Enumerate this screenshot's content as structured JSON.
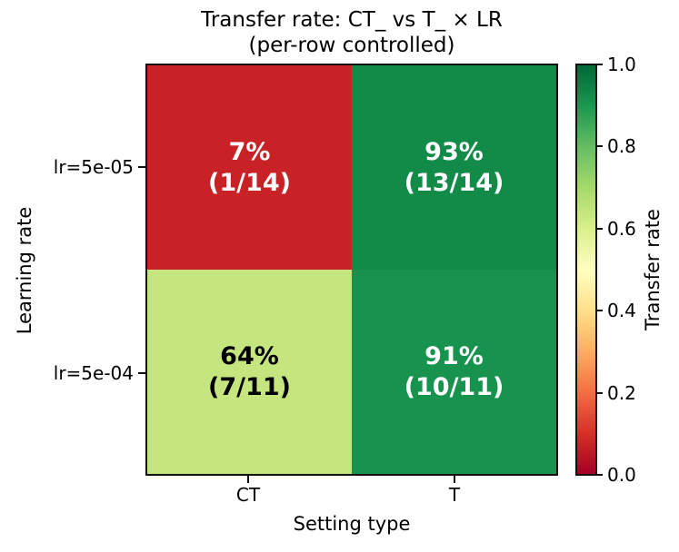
{
  "title": {
    "line1": "Transfer rate: CT_ vs T_ × LR",
    "line2": "(per-row controlled)"
  },
  "y_axis": {
    "label": "Learning rate",
    "ticks": [
      "lr=5e-05",
      "lr=5e-04"
    ]
  },
  "x_axis": {
    "label": "Setting type",
    "ticks": [
      "CT",
      "T"
    ]
  },
  "cells": [
    {
      "row": "lr=5e-05",
      "col": "CT",
      "pct": "7%",
      "frac": "(1/14)",
      "value": 0.07,
      "bg": "#c82227",
      "fg": "#ffffff"
    },
    {
      "row": "lr=5e-05",
      "col": "T",
      "pct": "93%",
      "frac": "(13/14)",
      "value": 0.93,
      "bg": "#128a48",
      "fg": "#ffffff"
    },
    {
      "row": "lr=5e-04",
      "col": "CT",
      "pct": "64%",
      "frac": "(7/11)",
      "value": 0.64,
      "bg": "#c5e67e",
      "fg": "#000000"
    },
    {
      "row": "lr=5e-04",
      "col": "T",
      "pct": "91%",
      "frac": "(10/11)",
      "value": 0.91,
      "bg": "#17934d",
      "fg": "#ffffff"
    }
  ],
  "colorbar": {
    "label": "Transfer rate",
    "ticks": [
      "1.0",
      "0.8",
      "0.6",
      "0.4",
      "0.2",
      "0.0"
    ],
    "range": [
      0.0,
      1.0
    ],
    "gradient_stops": [
      "#a50026",
      "#d73027",
      "#f46d43",
      "#fdae61",
      "#fee08b",
      "#ffffbf",
      "#d9ef8b",
      "#a6d96a",
      "#66bd63",
      "#1a9850",
      "#006837"
    ]
  },
  "chart_data": {
    "type": "heatmap",
    "title": "Transfer rate: CT_ vs T_ × LR (per-row controlled)",
    "xlabel": "Setting type",
    "ylabel": "Learning rate",
    "x_categories": [
      "CT",
      "T"
    ],
    "y_categories": [
      "lr=5e-05",
      "lr=5e-04"
    ],
    "values": [
      [
        0.07,
        0.93
      ],
      [
        0.64,
        0.91
      ]
    ],
    "annotations": [
      [
        "7% (1/14)",
        "93% (13/14)"
      ],
      [
        "64% (7/11)",
        "91% (10/11)"
      ]
    ],
    "counts": [
      [
        "1/14",
        "13/14"
      ],
      [
        "7/11",
        "10/11"
      ]
    ],
    "colormap": "RdYlGn",
    "colorbar_label": "Transfer rate",
    "colorbar_range": [
      0.0,
      1.0
    ],
    "colorbar_ticks": [
      0.0,
      0.2,
      0.4,
      0.6,
      0.8,
      1.0
    ],
    "legend_position": "right-colorbar",
    "grid": false,
    "cell_border": "none",
    "axes_border_color": "#111111"
  }
}
